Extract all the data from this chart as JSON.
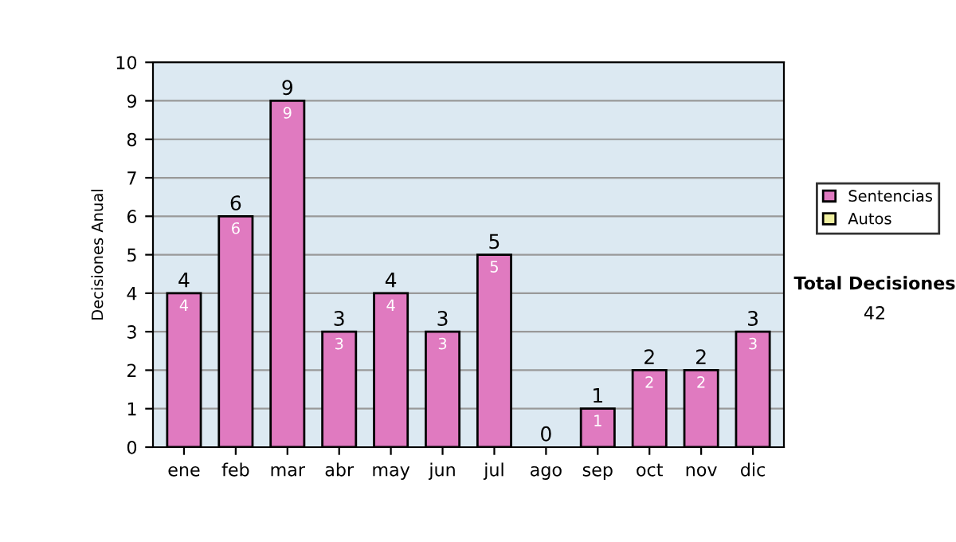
{
  "chart_data": {
    "type": "bar",
    "ylabel": "Decisiones Anual",
    "categories": [
      "ene",
      "feb",
      "mar",
      "abr",
      "may",
      "jun",
      "jul",
      "ago",
      "sep",
      "oct",
      "nov",
      "dic"
    ],
    "series": [
      {
        "name": "Sentencias",
        "color": "#e07ac0",
        "values": [
          4,
          6,
          9,
          3,
          4,
          3,
          5,
          0,
          1,
          2,
          2,
          3
        ],
        "value_labels": [
          "4",
          "6",
          "9",
          "3",
          "4",
          "3",
          "5",
          null,
          "1",
          "2",
          "2",
          "3"
        ]
      },
      {
        "name": "Autos",
        "color": "#f0f0a0",
        "values": [
          0,
          0,
          0,
          0,
          0,
          0,
          0,
          0,
          0,
          0,
          0,
          0
        ]
      }
    ],
    "stacked": true,
    "totals": [
      "4",
      "6",
      "9",
      "3",
      "4",
      "3",
      "5",
      "0",
      "1",
      "2",
      "2",
      "3"
    ],
    "ylim": [
      0,
      10
    ],
    "yticks": [
      0,
      1,
      2,
      3,
      4,
      5,
      6,
      7,
      8,
      9,
      10
    ],
    "grid": "y",
    "legend": "right",
    "annotations": [
      "Total Decisiones",
      "42"
    ]
  }
}
